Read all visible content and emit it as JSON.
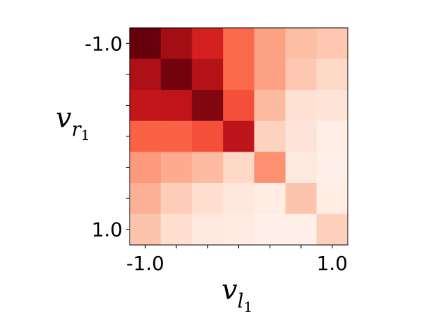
{
  "chart_data": {
    "type": "heatmap",
    "colormap": "Reds",
    "rows": 7,
    "cols": 7,
    "values": [
      [
        1.0,
        0.88,
        0.72,
        0.5,
        0.33,
        0.24,
        0.21
      ],
      [
        0.85,
        0.98,
        0.82,
        0.5,
        0.33,
        0.21,
        0.15
      ],
      [
        0.78,
        0.79,
        0.95,
        0.57,
        0.25,
        0.12,
        0.1
      ],
      [
        0.52,
        0.52,
        0.57,
        0.8,
        0.17,
        0.1,
        0.04
      ],
      [
        0.35,
        0.3,
        0.25,
        0.15,
        0.38,
        0.07,
        0.03
      ],
      [
        0.28,
        0.19,
        0.13,
        0.08,
        0.05,
        0.22,
        0.05
      ],
      [
        0.22,
        0.13,
        0.07,
        0.06,
        0.03,
        0.03,
        0.18
      ]
    ],
    "x_tick_labels": [
      "-1.0",
      "",
      "",
      "",
      "",
      "",
      "1.0"
    ],
    "y_tick_labels": [
      "-1.0",
      "",
      "",
      "",
      "",
      "",
      "1.0"
    ],
    "xlabel": {
      "base": "v",
      "sub": "l",
      "subsub": "1"
    },
    "ylabel": {
      "base": "v",
      "sub": "r",
      "subsub": "1"
    }
  }
}
